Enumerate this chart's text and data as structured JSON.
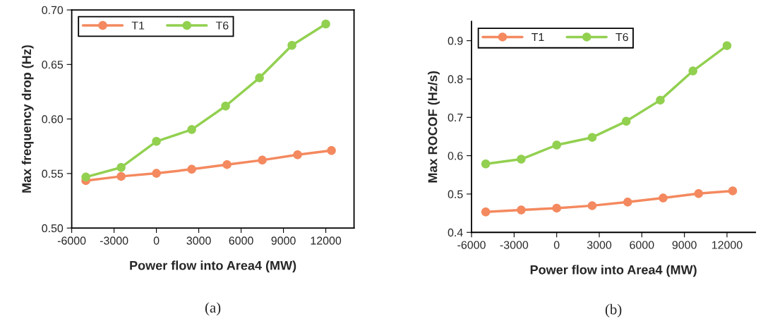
{
  "chart_data": [
    {
      "type": "line",
      "xlabel": "Power flow into Area4 (MW)",
      "ylabel": "Max frequency drop (Hz)",
      "annotations": [
        "(a)"
      ],
      "xlim": [
        -6000,
        14000
      ],
      "xticks": [
        -6000,
        -3000,
        0,
        3000,
        6000,
        9000,
        12000
      ],
      "ylim": [
        0.5,
        0.7
      ],
      "yticks": [
        {
          "value": 0.5,
          "label": "0.50"
        },
        {
          "value": 0.55,
          "label": "0.55"
        },
        {
          "value": 0.6,
          "label": "0.60"
        },
        {
          "value": 0.65,
          "label": "0.65"
        },
        {
          "value": 0.7,
          "label": "0.70"
        }
      ],
      "legend": "top left",
      "marker": "circle",
      "line_style": "solid",
      "grid": false,
      "series": [
        {
          "name": "T1",
          "color": "#f4895f",
          "x": [
            -5000,
            -2500,
            0,
            2500,
            5000,
            7500,
            10000,
            12400
          ],
          "values": [
            0.5435,
            0.5474,
            0.5502,
            0.5539,
            0.5582,
            0.5623,
            0.5672,
            0.5711
          ]
        },
        {
          "name": "T6",
          "color": "#92d050",
          "x": [
            -5000,
            -2500,
            0,
            2500,
            4900,
            7300,
            9600,
            12000
          ],
          "values": [
            0.5468,
            0.5556,
            0.5795,
            0.5903,
            0.6119,
            0.6377,
            0.6675,
            0.6871
          ]
        }
      ]
    },
    {
      "type": "line",
      "xlabel": "Power flow into Area4 (MW)",
      "ylabel": "Max ROCOF (Hz/s)",
      "annotations": [
        "(b)"
      ],
      "xlim": [
        -6000,
        14000
      ],
      "xticks": [
        -6000,
        -3000,
        0,
        3000,
        6000,
        9000,
        12000
      ],
      "ylim": [
        0.4,
        0.95
      ],
      "yticks": [
        0.4,
        0.5,
        0.6,
        0.7,
        0.8,
        0.9
      ],
      "legend": "top left",
      "marker": "circle",
      "line_style": "solid",
      "grid": false,
      "series": [
        {
          "name": "T1",
          "color": "#f4895f",
          "x": [
            -5000,
            -2500,
            0,
            2500,
            5000,
            7500,
            10000,
            12400
          ],
          "values": [
            0.4533,
            0.4585,
            0.4632,
            0.4697,
            0.479,
            0.4896,
            0.5013,
            0.5083
          ]
        },
        {
          "name": "T6",
          "color": "#92d050",
          "x": [
            -5000,
            -2500,
            0,
            2500,
            4900,
            7300,
            9600,
            12000
          ],
          "values": [
            0.5786,
            0.5909,
            0.6278,
            0.6477,
            0.6898,
            0.7449,
            0.821,
            0.8871
          ]
        }
      ]
    }
  ]
}
